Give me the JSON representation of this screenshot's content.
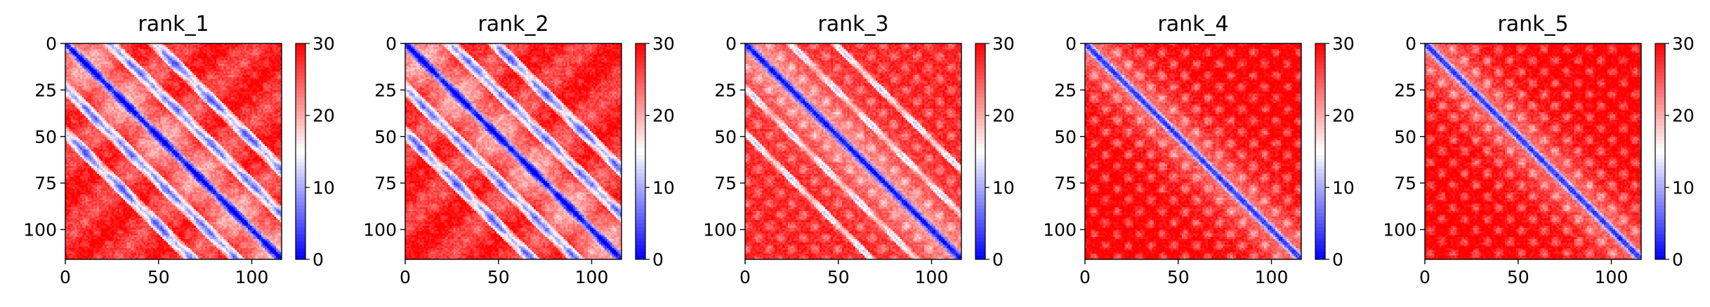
{
  "chart_data": [
    {
      "type": "heatmap",
      "title": "rank_1",
      "matrix_size": 116,
      "pattern": "repeat-stripes",
      "x_ticks": [
        0,
        50,
        100
      ],
      "y_ticks": [
        0,
        25,
        50,
        75,
        100
      ],
      "colorbar": {
        "colormap": "bwr",
        "ticks": [
          0,
          10,
          20,
          30
        ],
        "vmin": 0,
        "vmax": 30
      }
    },
    {
      "type": "heatmap",
      "title": "rank_2",
      "matrix_size": 116,
      "pattern": "repeat-stripes",
      "x_ticks": [
        0,
        50,
        100
      ],
      "y_ticks": [
        0,
        25,
        50,
        75,
        100
      ],
      "colorbar": {
        "colormap": "bwr",
        "ticks": [
          0,
          10,
          20,
          30
        ],
        "vmin": 0,
        "vmax": 30
      }
    },
    {
      "type": "heatmap",
      "title": "rank_3",
      "matrix_size": 116,
      "pattern": "weak-stripes",
      "x_ticks": [
        0,
        50,
        100
      ],
      "y_ticks": [
        0,
        25,
        50,
        75,
        100
      ],
      "colorbar": {
        "colormap": "bwr",
        "ticks": [
          0,
          10,
          20,
          30
        ],
        "vmin": 0,
        "vmax": 30
      }
    },
    {
      "type": "heatmap",
      "title": "rank_4",
      "matrix_size": 116,
      "pattern": "diagonal-only",
      "x_ticks": [
        0,
        50,
        100
      ],
      "y_ticks": [
        0,
        25,
        50,
        75,
        100
      ],
      "colorbar": {
        "colormap": "bwr",
        "ticks": [
          0,
          10,
          20,
          30
        ],
        "vmin": 0,
        "vmax": 30
      }
    },
    {
      "type": "heatmap",
      "title": "rank_5",
      "matrix_size": 116,
      "pattern": "diagonal-only",
      "x_ticks": [
        0,
        50,
        100
      ],
      "y_ticks": [
        0,
        25,
        50,
        75,
        100
      ],
      "colorbar": {
        "colormap": "bwr",
        "ticks": [
          0,
          10,
          20,
          30
        ],
        "vmin": 0,
        "vmax": 30
      }
    }
  ]
}
